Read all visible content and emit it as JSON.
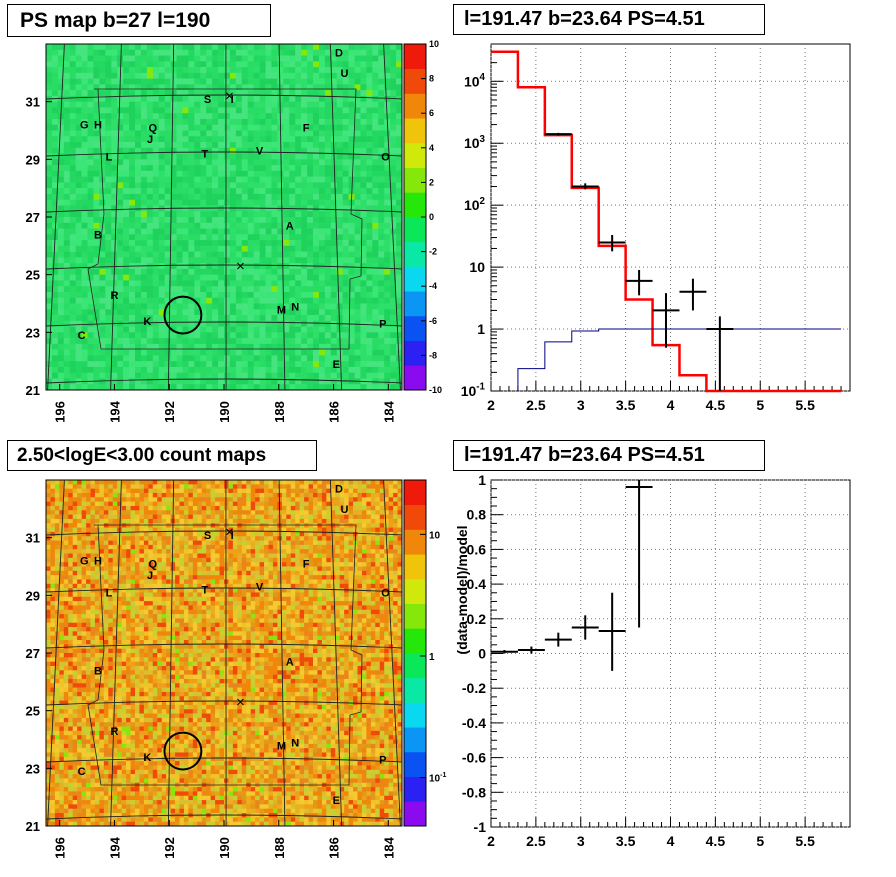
{
  "chart_data": [
    {
      "type": "heatmap",
      "title": "PS map b=27 l=190",
      "colorbar": {
        "scale": "linear",
        "min": -10,
        "max": 10,
        "ticks": [
          -10,
          -8,
          -6,
          -4,
          -2,
          0,
          2,
          4,
          6,
          8,
          10
        ],
        "colors": [
          "#8a0bf0",
          "#2b21f2",
          "#0a53f2",
          "#0a96f2",
          "#0ad7f0",
          "#0ae8a6",
          "#0ae85a",
          "#25e80a",
          "#86e80a",
          "#d0e80a",
          "#f0c40a",
          "#f0860a",
          "#f04a0a",
          "#f01a0a"
        ]
      },
      "x_ticks": [
        "196",
        "194",
        "192",
        "190",
        "188",
        "186",
        "184"
      ],
      "y_ticks": [
        "31",
        "29",
        "27",
        "25",
        "23",
        "21"
      ],
      "xlim": [
        196.5,
        183.5
      ],
      "ylim": [
        21,
        33
      ],
      "base_color": "#20e060",
      "sources": [
        {
          "label": "D",
          "l": 185.8,
          "b": 32.7
        },
        {
          "label": "U",
          "l": 185.6,
          "b": 32.0
        },
        {
          "label": "S",
          "l": 190.6,
          "b": 31.1
        },
        {
          "label": "I",
          "l": 189.7,
          "b": 31.1
        },
        {
          "label": "G",
          "l": 195.1,
          "b": 30.2
        },
        {
          "label": "H",
          "l": 194.6,
          "b": 30.2
        },
        {
          "label": "Q",
          "l": 192.6,
          "b": 30.1
        },
        {
          "label": "J",
          "l": 192.7,
          "b": 29.7
        },
        {
          "label": "F",
          "l": 187.0,
          "b": 30.1
        },
        {
          "label": "L",
          "l": 194.2,
          "b": 29.1
        },
        {
          "label": "T",
          "l": 190.7,
          "b": 29.2
        },
        {
          "label": "V",
          "l": 188.7,
          "b": 29.3
        },
        {
          "label": "O",
          "l": 184.1,
          "b": 29.1
        },
        {
          "label": "B",
          "l": 194.6,
          "b": 26.4
        },
        {
          "label": "A",
          "l": 187.6,
          "b": 26.7
        },
        {
          "label": "R",
          "l": 194.0,
          "b": 24.3
        },
        {
          "label": "K",
          "l": 192.8,
          "b": 23.4
        },
        {
          "label": "M",
          "l": 187.9,
          "b": 23.8
        },
        {
          "label": "N",
          "l": 187.4,
          "b": 23.9
        },
        {
          "label": "P",
          "l": 184.2,
          "b": 23.3
        },
        {
          "label": "C",
          "l": 195.2,
          "b": 22.9
        },
        {
          "label": "E",
          "l": 185.9,
          "b": 21.9
        }
      ],
      "crosses": [
        {
          "l": 189.8,
          "b": 31.2
        },
        {
          "l": 189.4,
          "b": 25.3
        }
      ],
      "circle": {
        "l": 191.5,
        "b": 23.6,
        "r": 0.6
      }
    },
    {
      "type": "line",
      "title": "l=191.47 b=23.64 PS=4.51",
      "xlim": [
        2,
        6
      ],
      "ylim": [
        0.1,
        40000
      ],
      "yscale": "log",
      "x_ticks": [
        "2",
        "2.5",
        "3",
        "3.5",
        "4",
        "4.5",
        "5",
        "5.5"
      ],
      "y_ticks": [
        "10^-1",
        "1",
        "10",
        "10^2",
        "10^3",
        "10^4"
      ],
      "grid": true,
      "bin_edges": [
        2,
        2.3,
        2.6,
        2.9,
        3.2,
        3.5,
        3.8,
        4.1,
        4.4,
        4.7,
        5.0,
        5.3,
        5.6,
        5.9
      ],
      "series": [
        {
          "color": "#ff0000",
          "values": [
            30000,
            8000,
            1350,
            190,
            22,
            3.0,
            0.55,
            0.18,
            0.1,
            0.1,
            0.1,
            0.1,
            0.1
          ]
        },
        {
          "color": "#000080",
          "values": [
            0.1,
            0.23,
            0.62,
            0.93,
            1.0,
            1.0,
            1.0,
            1.0,
            1.0,
            1.0,
            1.0,
            1.0,
            1.0
          ]
        }
      ],
      "points": [
        {
          "x": 2.75,
          "y": 1400,
          "xerr": 0.15,
          "ylo": 1330,
          "yhi": 1470
        },
        {
          "x": 3.05,
          "y": 200,
          "xerr": 0.15,
          "ylo": 180,
          "yhi": 225
        },
        {
          "x": 3.35,
          "y": 25,
          "xerr": 0.15,
          "ylo": 18,
          "yhi": 33
        },
        {
          "x": 3.65,
          "y": 6.0,
          "xerr": 0.15,
          "ylo": 3.5,
          "yhi": 9.0
        },
        {
          "x": 3.95,
          "y": 2.0,
          "xerr": 0.15,
          "ylo": 0.5,
          "yhi": 3.8
        },
        {
          "x": 4.25,
          "y": 4.0,
          "xerr": 0.15,
          "ylo": 2.0,
          "yhi": 6.5
        },
        {
          "x": 4.55,
          "y": 1.0,
          "xerr": 0.15,
          "ylo": 0.1,
          "yhi": 1.6
        }
      ]
    },
    {
      "type": "heatmap",
      "title": "2.50<logE<3.00 count maps",
      "colorbar": {
        "scale": "log",
        "min": 0.04,
        "max": 28,
        "tick_values": [
          10,
          1,
          0.1
        ],
        "tick_labels": [
          "10",
          "1",
          "10^-1"
        ],
        "colors": [
          "#8a0bf0",
          "#2b21f2",
          "#0a53f2",
          "#0a96f2",
          "#0ad7f0",
          "#0ae8a6",
          "#0ae85a",
          "#25e80a",
          "#86e80a",
          "#d0e80a",
          "#f0c40a",
          "#f0860a",
          "#f04a0a",
          "#f01a0a"
        ]
      },
      "x_ticks": [
        "196",
        "194",
        "192",
        "190",
        "188",
        "186",
        "184"
      ],
      "y_ticks": [
        "31",
        "29",
        "27",
        "25",
        "23",
        "21"
      ],
      "xlim": [
        196.5,
        183.5
      ],
      "ylim": [
        21,
        33
      ],
      "base_color": "#e0b020",
      "sources": [
        {
          "label": "D",
          "l": 185.8,
          "b": 32.7
        },
        {
          "label": "U",
          "l": 185.6,
          "b": 32.0
        },
        {
          "label": "S",
          "l": 190.6,
          "b": 31.1
        },
        {
          "label": "I",
          "l": 189.7,
          "b": 31.1
        },
        {
          "label": "G",
          "l": 195.1,
          "b": 30.2
        },
        {
          "label": "H",
          "l": 194.6,
          "b": 30.2
        },
        {
          "label": "Q",
          "l": 192.6,
          "b": 30.1
        },
        {
          "label": "J",
          "l": 192.7,
          "b": 29.7
        },
        {
          "label": "F",
          "l": 187.0,
          "b": 30.1
        },
        {
          "label": "L",
          "l": 194.2,
          "b": 29.1
        },
        {
          "label": "T",
          "l": 190.7,
          "b": 29.2
        },
        {
          "label": "V",
          "l": 188.7,
          "b": 29.3
        },
        {
          "label": "O",
          "l": 184.1,
          "b": 29.1
        },
        {
          "label": "B",
          "l": 194.6,
          "b": 26.4
        },
        {
          "label": "A",
          "l": 187.6,
          "b": 26.7
        },
        {
          "label": "R",
          "l": 194.0,
          "b": 24.3
        },
        {
          "label": "K",
          "l": 192.8,
          "b": 23.4
        },
        {
          "label": "M",
          "l": 187.9,
          "b": 23.8
        },
        {
          "label": "N",
          "l": 187.4,
          "b": 23.9
        },
        {
          "label": "P",
          "l": 184.2,
          "b": 23.3
        },
        {
          "label": "C",
          "l": 195.2,
          "b": 22.9
        },
        {
          "label": "E",
          "l": 185.9,
          "b": 21.9
        }
      ],
      "crosses": [
        {
          "l": 189.8,
          "b": 31.2
        },
        {
          "l": 189.4,
          "b": 25.3
        }
      ],
      "circle": {
        "l": 191.5,
        "b": 23.6,
        "r": 0.6
      }
    },
    {
      "type": "scatter",
      "title": "l=191.47 b=23.64 PS=4.51",
      "ylabel": "(data-model)/model",
      "xlim": [
        2,
        6
      ],
      "ylim": [
        -1,
        1
      ],
      "x_ticks": [
        "2",
        "2.5",
        "3",
        "3.5",
        "4",
        "4.5",
        "5",
        "5.5"
      ],
      "y_ticks": [
        "1",
        "0.8",
        "0.6",
        "0.4",
        "0.2",
        "0",
        "-0.2",
        "-0.4",
        "-0.6",
        "-0.8",
        "-1"
      ],
      "grid": true,
      "points": [
        {
          "x": 2.15,
          "y": 0.01,
          "xerr": 0.15,
          "ylo": 0.0,
          "yhi": 0.02
        },
        {
          "x": 2.45,
          "y": 0.02,
          "xerr": 0.15,
          "ylo": 0.0,
          "yhi": 0.04
        },
        {
          "x": 2.75,
          "y": 0.08,
          "xerr": 0.15,
          "ylo": 0.04,
          "yhi": 0.12
        },
        {
          "x": 3.05,
          "y": 0.15,
          "xerr": 0.15,
          "ylo": 0.08,
          "yhi": 0.22
        },
        {
          "x": 3.35,
          "y": 0.13,
          "xerr": 0.15,
          "ylo": -0.1,
          "yhi": 0.35
        },
        {
          "x": 3.65,
          "y": 0.96,
          "xerr": 0.15,
          "ylo": 0.15,
          "yhi": 1.0
        }
      ]
    }
  ]
}
